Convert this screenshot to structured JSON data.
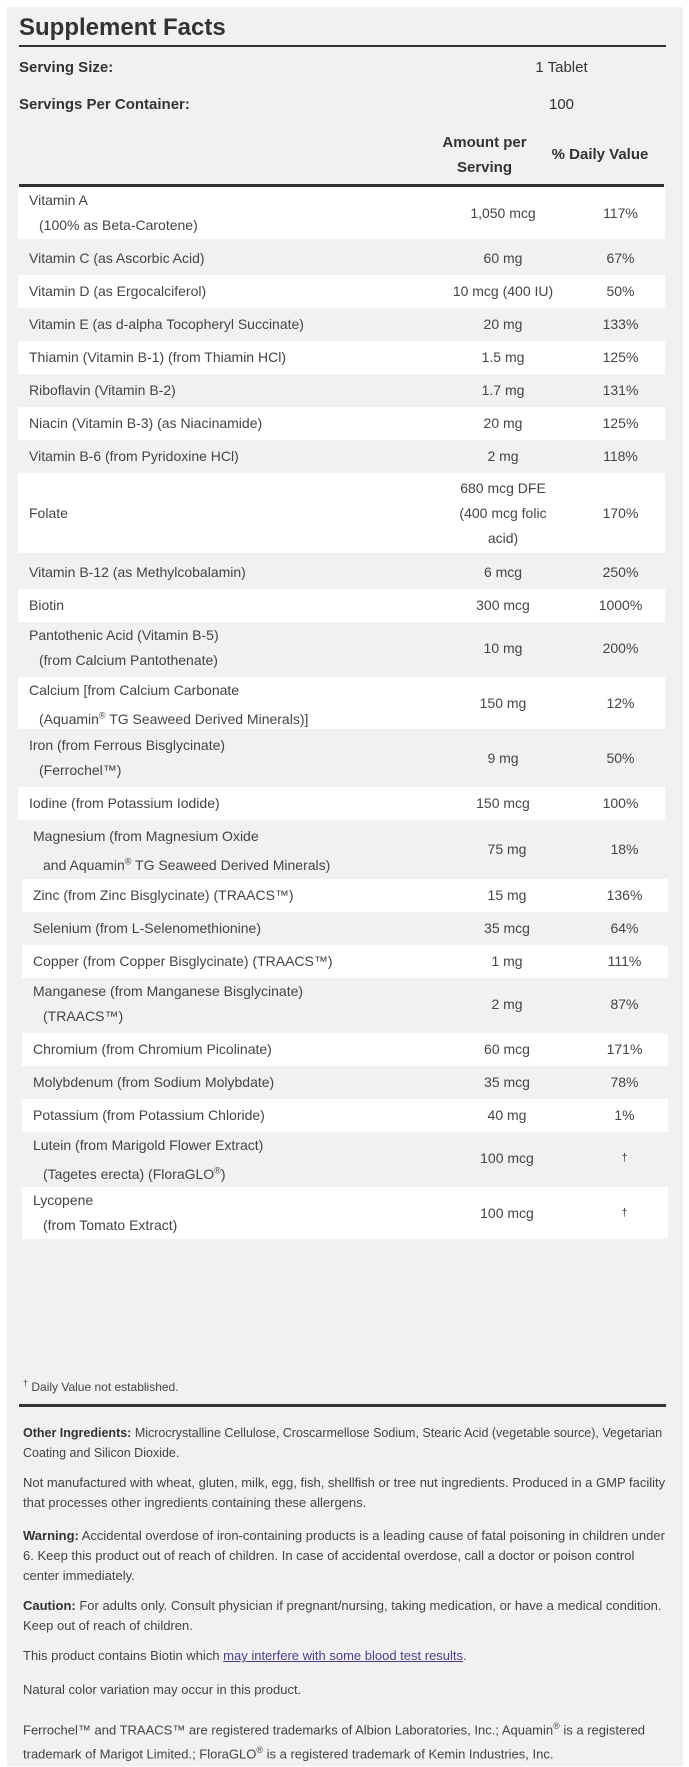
{
  "title": "Supplement Facts",
  "serving_size": {
    "label": "Serving Size:",
    "value": "1 Tablet"
  },
  "servings_per_container": {
    "label": "Servings Per Container:",
    "value": "100"
  },
  "headers": {
    "amount": "Amount per Serving",
    "dv": "% Daily Value"
  },
  "rows": [
    {
      "name": "Vitamin A",
      "name2": "(100% as Beta-Carotene)",
      "amount": "1,050 mcg",
      "dv": "117%"
    },
    {
      "name": "Vitamin C (as Ascorbic Acid)",
      "amount": "60 mg",
      "dv": "67%"
    },
    {
      "name": "Vitamin D (as Ergocalciferol)",
      "amount": "10 mcg (400 IU)",
      "dv": "50%"
    },
    {
      "name": "Vitamin E (as d-alpha Tocopheryl Succinate)",
      "amount": "20 mg",
      "dv": "133%"
    },
    {
      "name": "Thiamin (Vitamin B-1) (from Thiamin HCl)",
      "amount": "1.5 mg",
      "dv": "125%"
    },
    {
      "name": "Riboflavin (Vitamin B-2)",
      "amount": "1.7 mg",
      "dv": "131%"
    },
    {
      "name": "Niacin (Vitamin B-3) (as Niacinamide)",
      "amount": "20 mg",
      "dv": "125%"
    },
    {
      "name": "Vitamin B-6 (from Pyridoxine HCl)",
      "amount": "2 mg",
      "dv": "118%"
    },
    {
      "name": "Folate",
      "amount": "680 mcg DFE",
      "amount2": "(400 mcg folic",
      "amount3": "acid)",
      "dv": "170%"
    },
    {
      "name": "Vitamin B-12 (as Methylcobalamin)",
      "amount": "6 mcg",
      "dv": "250%"
    },
    {
      "name": "Biotin",
      "amount": "300 mcg",
      "dv": "1000%"
    },
    {
      "name": "Pantothenic Acid (Vitamin B-5)",
      "name2": "(from Calcium Pantothenate)",
      "amount": "10 mg",
      "dv": "200%"
    },
    {
      "name": "Calcium [from Calcium Carbonate",
      "name2a": "(Aquamin",
      "name2b": " TG Seaweed Derived Minerals)]",
      "amount": "150 mg",
      "dv": "12%"
    },
    {
      "name": "Iron (from Ferrous Bisglycinate)",
      "name2": "(Ferrochel™)",
      "amount": "9 mg",
      "dv": "50%"
    },
    {
      "name": "Iodine (from Potassium Iodide)",
      "amount": "150 mcg",
      "dv": "100%"
    },
    {
      "name": "Magnesium (from Magnesium Oxide",
      "name2a": "and Aquamin",
      "name2b": " TG Seaweed Derived Minerals)",
      "amount": "75 mg",
      "dv": "18%"
    },
    {
      "name": "Zinc (from Zinc Bisglycinate) (TRAACS™)",
      "amount": "15 mg",
      "dv": "136%"
    },
    {
      "name": "Selenium (from L-Selenomethionine)",
      "amount": "35 mcg",
      "dv": "64%"
    },
    {
      "name": "Copper (from Copper Bisglycinate) (TRAACS™)",
      "amount": "1 mg",
      "dv": "111%"
    },
    {
      "name": "Manganese (from Manganese Bisglycinate)",
      "name2": "(TRAACS™)",
      "amount": "2 mg",
      "dv": "87%"
    },
    {
      "name": "Chromium (from Chromium Picolinate)",
      "amount": "60 mcg",
      "dv": "171%"
    },
    {
      "name": "Molybdenum (from Sodium Molybdate)",
      "amount": "35 mcg",
      "dv": "78%"
    },
    {
      "name": "Potassium (from Potassium Chloride)",
      "amount": "40 mg",
      "dv": "1%"
    },
    {
      "name": "Lutein (from Marigold Flower Extract)",
      "name2a": "(Tagetes erecta) (FloraGLO",
      "name2b": ")",
      "amount": "100 mcg",
      "dv": "†"
    },
    {
      "name": "Lycopene",
      "name2": "(from Tomato Extract)",
      "amount": "100 mcg",
      "dv": "†"
    }
  ],
  "registered_mark": "®",
  "footnote": {
    "mark": "†",
    "text": " Daily Value not established."
  },
  "other_ingredients": {
    "label": "Other Ingredients:",
    "text": " Microcrystalline Cellulose, Croscarmellose Sodium, Stearic Acid (vegetable source), Vegetarian Coating and Silicon Dioxide."
  },
  "allergen": "Not manufactured with wheat, gluten, milk, egg, fish, shellfish or tree nut ingredients. Produced in a GMP facility that processes other ingredients containing these allergens.",
  "warning": {
    "label": "Warning:",
    "text": " Accidental overdose of iron-containing products is a leading cause of fatal poisoning in children under 6. Keep this product out of reach of children. In case of accidental overdose, call a doctor or poison control center immediately."
  },
  "caution": {
    "label": "Caution:",
    "text": " For adults only. Consult physician if pregnant/nursing, taking medication, or have a medical condition. Keep out of reach of children."
  },
  "biotin": {
    "before": "This product contains Biotin which ",
    "link": "may interfere with some blood test results",
    "after": "."
  },
  "color_note": "Natural color variation may occur in this product.",
  "trademarks": {
    "part1": "Ferrochel™ and TRAACS™ are registered trademarks of Albion Laboratories, Inc.; Aquamin",
    "part2": " is a registered trademark of Marigot Limited.; FloraGLO",
    "part3": " is a registered trademark of Kemin Industries, Inc."
  }
}
